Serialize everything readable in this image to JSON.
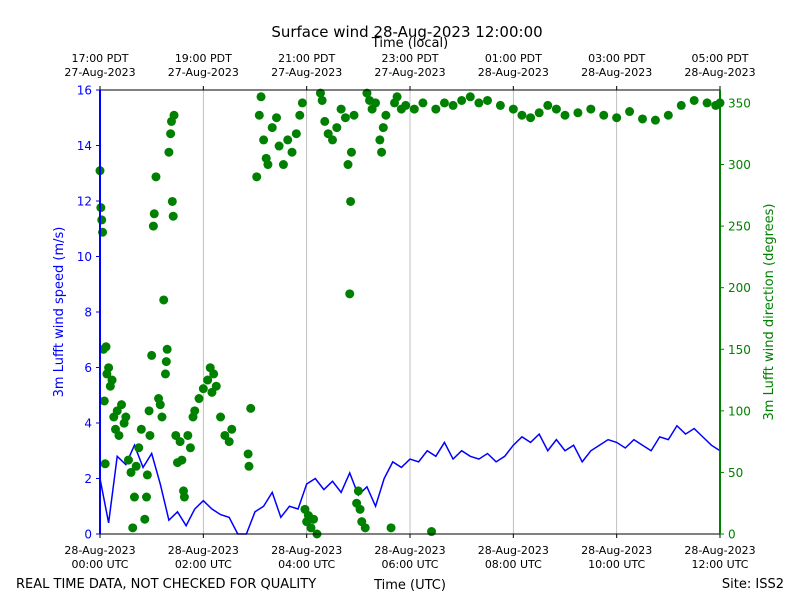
{
  "chart_data": {
    "type": "line",
    "title": "Surface wind 28-Aug-2023 12:00:00",
    "xlabel": "Time (UTC)",
    "x2label": "Time (local)",
    "ylabel": "3m Lufft wind speed (m/s)",
    "y2label": "3m Lufft wind direction (degrees)",
    "footer_left": "REAL TIME DATA, NOT CHECKED FOR QUALITY",
    "footer_right": "Site: ISS2",
    "xlim": [
      "2023-08-28 00:00",
      "2023-08-28 12:00"
    ],
    "xticks": [
      {
        "value": "2023-08-28 00:00",
        "label": "28-Aug-2023\n00:00 UTC"
      },
      {
        "value": "2023-08-28 02:00",
        "label": "28-Aug-2023\n02:00 UTC"
      },
      {
        "value": "2023-08-28 04:00",
        "label": "28-Aug-2023\n04:00 UTC"
      },
      {
        "value": "2023-08-28 06:00",
        "label": "28-Aug-2023\n06:00 UTC"
      },
      {
        "value": "2023-08-28 08:00",
        "label": "28-Aug-2023\n08:00 UTC"
      },
      {
        "value": "2023-08-28 10:00",
        "label": "28-Aug-2023\n10:00 UTC"
      },
      {
        "value": "2023-08-28 12:00",
        "label": "28-Aug-2023\n12:00 UTC"
      }
    ],
    "x2ticks": [
      {
        "value": "2023-08-28 00:00",
        "label": "17:00 PDT\n27-Aug-2023"
      },
      {
        "value": "2023-08-28 02:00",
        "label": "19:00 PDT\n27-Aug-2023"
      },
      {
        "value": "2023-08-28 04:00",
        "label": "21:00 PDT\n27-Aug-2023"
      },
      {
        "value": "2023-08-28 06:00",
        "label": "23:00 PDT\n27-Aug-2023"
      },
      {
        "value": "2023-08-28 08:00",
        "label": "01:00 PDT\n28-Aug-2023"
      },
      {
        "value": "2023-08-28 10:00",
        "label": "03:00 PDT\n28-Aug-2023"
      },
      {
        "value": "2023-08-28 12:00",
        "label": "05:00 PDT\n28-Aug-2023"
      }
    ],
    "ylim": [
      0,
      16
    ],
    "yticks": [
      0,
      2,
      4,
      6,
      8,
      10,
      12,
      14,
      16
    ],
    "y2lim": [
      0,
      360.5
    ],
    "y2ticks": [
      0,
      50,
      100,
      150,
      200,
      250,
      300,
      350
    ],
    "xgrid": true,
    "y_color": "#0000ff",
    "y2_color": "#008000",
    "series": [
      {
        "type": "line",
        "color": "#0000ff",
        "x": [
          "2023-08-28 00:00",
          "2023-08-28 00:10",
          "2023-08-28 00:20",
          "2023-08-28 00:30",
          "2023-08-28 00:40",
          "2023-08-28 00:50",
          "2023-08-28 01:00",
          "2023-08-28 01:10",
          "2023-08-28 01:20",
          "2023-08-28 01:30",
          "2023-08-28 01:40",
          "2023-08-28 01:50",
          "2023-08-28 02:00",
          "2023-08-28 02:10",
          "2023-08-28 02:20",
          "2023-08-28 02:30",
          "2023-08-28 02:40",
          "2023-08-28 02:50",
          "2023-08-28 03:00",
          "2023-08-28 03:10",
          "2023-08-28 03:20",
          "2023-08-28 03:30",
          "2023-08-28 03:40",
          "2023-08-28 03:50",
          "2023-08-28 04:00",
          "2023-08-28 04:10",
          "2023-08-28 04:20",
          "2023-08-28 04:30",
          "2023-08-28 04:40",
          "2023-08-28 04:50",
          "2023-08-28 05:00",
          "2023-08-28 05:10",
          "2023-08-28 05:20",
          "2023-08-28 05:30",
          "2023-08-28 05:40",
          "2023-08-28 05:50",
          "2023-08-28 06:00",
          "2023-08-28 06:10",
          "2023-08-28 06:20",
          "2023-08-28 06:30",
          "2023-08-28 06:40",
          "2023-08-28 06:50",
          "2023-08-28 07:00",
          "2023-08-28 07:10",
          "2023-08-28 07:20",
          "2023-08-28 07:30",
          "2023-08-28 07:40",
          "2023-08-28 07:50",
          "2023-08-28 08:00",
          "2023-08-28 08:10",
          "2023-08-28 08:20",
          "2023-08-28 08:30",
          "2023-08-28 08:40",
          "2023-08-28 08:50",
          "2023-08-28 09:00",
          "2023-08-28 09:10",
          "2023-08-28 09:20",
          "2023-08-28 09:30",
          "2023-08-28 09:40",
          "2023-08-28 09:50",
          "2023-08-28 10:00",
          "2023-08-28 10:10",
          "2023-08-28 10:20",
          "2023-08-28 10:30",
          "2023-08-28 10:40",
          "2023-08-28 10:50",
          "2023-08-28 11:00",
          "2023-08-28 11:10",
          "2023-08-28 11:20",
          "2023-08-28 11:30",
          "2023-08-28 11:40",
          "2023-08-28 11:50",
          "2023-08-28 12:00"
        ],
        "values": [
          2.0,
          0.4,
          2.8,
          2.5,
          3.2,
          2.4,
          2.9,
          1.8,
          0.5,
          0.8,
          0.3,
          0.9,
          1.2,
          0.9,
          0.7,
          0.6,
          0.0,
          0.0,
          0.8,
          1.0,
          1.5,
          0.6,
          1.0,
          0.9,
          1.8,
          2.0,
          1.6,
          1.9,
          1.5,
          2.2,
          1.4,
          1.7,
          1.0,
          2.0,
          2.6,
          2.4,
          2.7,
          2.6,
          3.0,
          2.8,
          3.3,
          2.7,
          3.0,
          2.8,
          2.7,
          2.9,
          2.6,
          2.8,
          3.2,
          3.5,
          3.3,
          3.6,
          3.0,
          3.4,
          3.0,
          3.2,
          2.6,
          3.0,
          3.2,
          3.4,
          3.3,
          3.1,
          3.4,
          3.2,
          3.0,
          3.5,
          3.4,
          3.9,
          3.6,
          3.8,
          3.5,
          3.2,
          3.0
        ]
      },
      {
        "type": "scatter",
        "axis": "y2",
        "color": "#008000",
        "x": [
          "2023-08-28 00:00",
          "2023-08-28 00:01",
          "2023-08-28 00:02",
          "2023-08-28 00:03",
          "2023-08-28 00:04",
          "2023-08-28 00:05",
          "2023-08-28 00:06",
          "2023-08-28 00:07",
          "2023-08-28 00:08",
          "2023-08-28 00:10",
          "2023-08-28 00:12",
          "2023-08-28 00:14",
          "2023-08-28 00:16",
          "2023-08-28 00:18",
          "2023-08-28 00:20",
          "2023-08-28 00:22",
          "2023-08-28 00:25",
          "2023-08-28 00:28",
          "2023-08-28 00:30",
          "2023-08-28 00:33",
          "2023-08-28 00:36",
          "2023-08-28 00:38",
          "2023-08-28 00:40",
          "2023-08-28 00:42",
          "2023-08-28 00:45",
          "2023-08-28 00:48",
          "2023-08-28 00:52",
          "2023-08-28 00:54",
          "2023-08-28 00:55",
          "2023-08-28 00:57",
          "2023-08-28 00:58",
          "2023-08-28 01:00",
          "2023-08-28 01:02",
          "2023-08-28 01:03",
          "2023-08-28 01:05",
          "2023-08-28 01:08",
          "2023-08-28 01:10",
          "2023-08-28 01:12",
          "2023-08-28 01:14",
          "2023-08-28 01:16",
          "2023-08-28 01:17",
          "2023-08-28 01:18",
          "2023-08-28 01:20",
          "2023-08-28 01:22",
          "2023-08-28 01:23",
          "2023-08-28 01:24",
          "2023-08-28 01:25",
          "2023-08-28 01:26",
          "2023-08-28 01:28",
          "2023-08-28 01:30",
          "2023-08-28 01:33",
          "2023-08-28 01:35",
          "2023-08-28 01:37",
          "2023-08-28 01:38",
          "2023-08-28 01:42",
          "2023-08-28 01:45",
          "2023-08-28 01:48",
          "2023-08-28 01:50",
          "2023-08-28 01:55",
          "2023-08-28 02:00",
          "2023-08-28 02:05",
          "2023-08-28 02:08",
          "2023-08-28 02:10",
          "2023-08-28 02:12",
          "2023-08-28 02:15",
          "2023-08-28 02:20",
          "2023-08-28 02:25",
          "2023-08-28 02:30",
          "2023-08-28 02:33",
          "2023-08-28 02:52",
          "2023-08-28 02:53",
          "2023-08-28 02:55",
          "2023-08-28 03:02",
          "2023-08-28 03:05",
          "2023-08-28 03:07",
          "2023-08-28 03:10",
          "2023-08-28 03:13",
          "2023-08-28 03:15",
          "2023-08-28 03:20",
          "2023-08-28 03:25",
          "2023-08-28 03:28",
          "2023-08-28 03:33",
          "2023-08-28 03:38",
          "2023-08-28 03:43",
          "2023-08-28 03:48",
          "2023-08-28 03:52",
          "2023-08-28 03:55",
          "2023-08-28 03:58",
          "2023-08-28 04:00",
          "2023-08-28 04:02",
          "2023-08-28 04:05",
          "2023-08-28 04:08",
          "2023-08-28 04:12",
          "2023-08-28 04:16",
          "2023-08-28 04:18",
          "2023-08-28 04:21",
          "2023-08-28 04:25",
          "2023-08-28 04:30",
          "2023-08-28 04:35",
          "2023-08-28 04:40",
          "2023-08-28 04:45",
          "2023-08-28 04:48",
          "2023-08-28 04:50",
          "2023-08-28 04:51",
          "2023-08-28 04:52",
          "2023-08-28 04:55",
          "2023-08-28 04:58",
          "2023-08-28 05:00",
          "2023-08-28 05:02",
          "2023-08-28 05:04",
          "2023-08-28 05:08",
          "2023-08-28 05:10",
          "2023-08-28 05:13",
          "2023-08-28 05:16",
          "2023-08-28 05:20",
          "2023-08-28 05:25",
          "2023-08-28 05:27",
          "2023-08-28 05:29",
          "2023-08-28 05:32",
          "2023-08-28 05:38",
          "2023-08-28 05:42",
          "2023-08-28 05:45",
          "2023-08-28 05:50",
          "2023-08-28 05:55",
          "2023-08-28 06:05",
          "2023-08-28 06:15",
          "2023-08-28 06:25",
          "2023-08-28 06:30",
          "2023-08-28 06:40",
          "2023-08-28 06:50",
          "2023-08-28 07:00",
          "2023-08-28 07:10",
          "2023-08-28 07:20",
          "2023-08-28 07:30",
          "2023-08-28 07:45",
          "2023-08-28 08:00",
          "2023-08-28 08:10",
          "2023-08-28 08:20",
          "2023-08-28 08:30",
          "2023-08-28 08:40",
          "2023-08-28 08:50",
          "2023-08-28 09:00",
          "2023-08-28 09:15",
          "2023-08-28 09:30",
          "2023-08-28 09:45",
          "2023-08-28 10:00",
          "2023-08-28 10:15",
          "2023-08-28 10:30",
          "2023-08-28 10:45",
          "2023-08-28 11:00",
          "2023-08-28 11:15",
          "2023-08-28 11:30",
          "2023-08-28 11:45",
          "2023-08-28 11:55",
          "2023-08-28 12:00"
        ],
        "values": [
          295,
          265,
          255,
          245,
          150,
          108,
          57,
          152,
          130,
          135,
          120,
          125,
          95,
          85,
          100,
          80,
          105,
          90,
          95,
          60,
          50,
          5,
          30,
          55,
          70,
          85,
          12,
          30,
          48,
          100,
          80,
          145,
          250,
          260,
          290,
          110,
          105,
          95,
          190,
          130,
          140,
          150,
          310,
          325,
          335,
          270,
          258,
          340,
          80,
          58,
          75,
          60,
          35,
          30,
          80,
          70,
          95,
          100,
          110,
          118,
          125,
          135,
          115,
          130,
          120,
          95,
          80,
          75,
          85,
          65,
          55,
          102,
          290,
          340,
          355,
          320,
          305,
          300,
          330,
          338,
          315,
          300,
          320,
          310,
          325,
          340,
          350,
          20,
          10,
          15,
          5,
          12,
          0,
          358,
          352,
          335,
          325,
          320,
          330,
          345,
          338,
          300,
          195,
          270,
          310,
          340,
          25,
          35,
          20,
          10,
          5,
          358,
          352,
          345,
          350,
          320,
          310,
          330,
          340,
          5,
          350,
          355,
          345,
          348,
          345,
          350,
          2,
          345,
          350,
          348,
          352,
          355,
          350,
          352,
          348,
          345,
          340,
          338,
          342,
          348,
          345,
          340,
          342,
          345,
          340,
          338,
          343,
          337,
          336,
          340,
          348,
          352,
          350,
          348,
          350
        ]
      }
    ]
  }
}
